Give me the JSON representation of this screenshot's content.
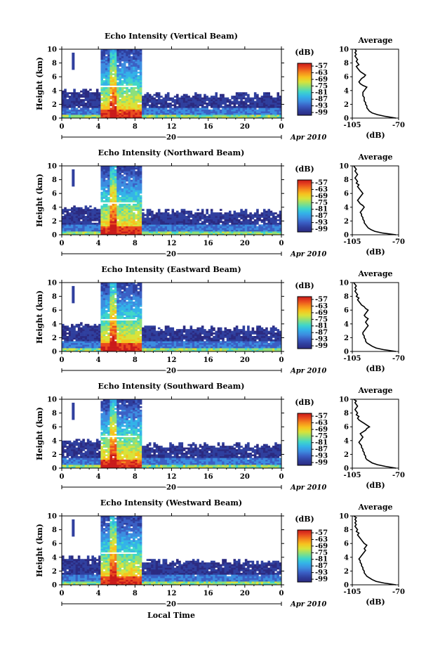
{
  "chart_data": [
    {
      "type": "heatmap",
      "title": "Echo Intensity (Vertical Beam)",
      "ylabel": "Height (km)",
      "xticks": [
        "0",
        "4",
        "8",
        "12",
        "16",
        "20",
        "0"
      ],
      "date_label": "20",
      "month_label": "Apr 2010",
      "yticks": [
        "0",
        "2",
        "4",
        "6",
        "8",
        "10"
      ],
      "ylim": [
        0,
        10
      ],
      "colorbar": {
        "label": "(dB)",
        "ticks": [
          "-57",
          "-63",
          "-69",
          "-75",
          "-81",
          "-87",
          "-93",
          "-99"
        ]
      },
      "average": {
        "title": "Average",
        "xlabel": "(dB)",
        "xticks": [
          "-105",
          "-70"
        ],
        "yticks": [
          "0",
          "2",
          "4",
          "6",
          "8",
          "10"
        ],
        "x": [
          -72,
          -80,
          -86,
          -90,
          -92,
          -93,
          -94,
          -94,
          -95,
          -95,
          -96,
          -96,
          -96,
          -97,
          -97,
          -97,
          -96,
          -95,
          -94,
          -97,
          -99,
          -100,
          -99,
          -98,
          -96,
          -95,
          -97,
          -99,
          -100,
          -101,
          -102,
          -100,
          -101,
          -102,
          -101,
          -102,
          -103,
          -102,
          -103,
          -102,
          -103
        ],
        "y": [
          0,
          0.25,
          0.5,
          0.75,
          1,
          1.25,
          1.5,
          1.75,
          2,
          2.25,
          2.5,
          2.75,
          3,
          3.25,
          3.5,
          3.75,
          4,
          4.25,
          4.5,
          4.75,
          5,
          5.25,
          5.5,
          5.75,
          6,
          6.25,
          6.5,
          6.75,
          7,
          7.25,
          7.5,
          7.75,
          8,
          8.25,
          8.5,
          8.75,
          9,
          9.25,
          9.5,
          9.75,
          10
        ]
      }
    },
    {
      "type": "heatmap",
      "title": "Echo Intensity (Northward Beam)",
      "ylabel": "Height (km)",
      "xticks": [
        "0",
        "4",
        "8",
        "12",
        "16",
        "20",
        "0"
      ],
      "date_label": "20",
      "month_label": "Apr 2010",
      "yticks": [
        "0",
        "2",
        "4",
        "6",
        "8",
        "10"
      ],
      "ylim": [
        0,
        10
      ],
      "colorbar": {
        "label": "(dB)",
        "ticks": [
          "-57",
          "-63",
          "-69",
          "-75",
          "-81",
          "-87",
          "-93",
          "-99"
        ]
      },
      "average": {
        "title": "Average",
        "xlabel": "(dB)",
        "xticks": [
          "-105",
          "-70"
        ],
        "yticks": [
          "0",
          "2",
          "4",
          "6",
          "8",
          "10"
        ],
        "x": [
          -72,
          -82,
          -88,
          -91,
          -93,
          -94,
          -95,
          -96,
          -96,
          -97,
          -97,
          -98,
          -98,
          -99,
          -98,
          -97,
          -96,
          -97,
          -99,
          -100,
          -101,
          -100,
          -99,
          -98,
          -97,
          -98,
          -99,
          -100,
          -101,
          -100,
          -102,
          -101,
          -102,
          -103,
          -102,
          -101,
          -102,
          -103,
          -102,
          -103,
          -104
        ],
        "y": [
          0,
          0.25,
          0.5,
          0.75,
          1,
          1.25,
          1.5,
          1.75,
          2,
          2.25,
          2.5,
          2.75,
          3,
          3.25,
          3.5,
          3.75,
          4,
          4.25,
          4.5,
          4.75,
          5,
          5.25,
          5.5,
          5.75,
          6,
          6.25,
          6.5,
          6.75,
          7,
          7.25,
          7.5,
          7.75,
          8,
          8.25,
          8.5,
          8.75,
          9,
          9.25,
          9.5,
          9.75,
          10
        ]
      }
    },
    {
      "type": "heatmap",
      "title": "Echo Intensity (Eastward Beam)",
      "ylabel": "Height (km)",
      "xticks": [
        "0",
        "4",
        "8",
        "12",
        "16",
        "20",
        "0"
      ],
      "date_label": "20",
      "month_label": "Apr 2010",
      "yticks": [
        "0",
        "2",
        "4",
        "6",
        "8",
        "10"
      ],
      "ylim": [
        0,
        10
      ],
      "colorbar": {
        "label": "(dB)",
        "ticks": [
          "-57",
          "-63",
          "-69",
          "-75",
          "-81",
          "-87",
          "-93",
          "-99"
        ]
      },
      "average": {
        "title": "Average",
        "xlabel": "(dB)",
        "xticks": [
          "-105",
          "-70"
        ],
        "yticks": [
          "0",
          "2",
          "4",
          "6",
          "8",
          "10"
        ],
        "x": [
          -72,
          -81,
          -87,
          -90,
          -92,
          -94,
          -95,
          -95,
          -96,
          -96,
          -97,
          -97,
          -96,
          -95,
          -94,
          -93,
          -94,
          -95,
          -94,
          -93,
          -95,
          -96,
          -95,
          -94,
          -93,
          -95,
          -96,
          -98,
          -99,
          -100,
          -101,
          -100,
          -102,
          -101,
          -102,
          -103,
          -102,
          -103,
          -102,
          -103,
          -104
        ],
        "y": [
          0,
          0.25,
          0.5,
          0.75,
          1,
          1.25,
          1.5,
          1.75,
          2,
          2.25,
          2.5,
          2.75,
          3,
          3.25,
          3.5,
          3.75,
          4,
          4.25,
          4.5,
          4.75,
          5,
          5.25,
          5.5,
          5.75,
          6,
          6.25,
          6.5,
          6.75,
          7,
          7.25,
          7.5,
          7.75,
          8,
          8.25,
          8.5,
          8.75,
          9,
          9.25,
          9.5,
          9.75,
          10
        ]
      }
    },
    {
      "type": "heatmap",
      "title": "Echo Intensity (Southward Beam)",
      "ylabel": "Height (km)",
      "xticks": [
        "0",
        "4",
        "8",
        "12",
        "16",
        "20",
        "0"
      ],
      "date_label": "20",
      "month_label": "Apr 2010",
      "yticks": [
        "0",
        "2",
        "4",
        "6",
        "8",
        "10"
      ],
      "ylim": [
        0,
        10
      ],
      "colorbar": {
        "label": "(dB)",
        "ticks": [
          "-57",
          "-63",
          "-69",
          "-75",
          "-81",
          "-87",
          "-93",
          "-99"
        ]
      },
      "average": {
        "title": "Average",
        "xlabel": "(dB)",
        "xticks": [
          "-105",
          "-70"
        ],
        "yticks": [
          "0",
          "2",
          "4",
          "6",
          "8",
          "10"
        ],
        "x": [
          -72,
          -80,
          -86,
          -90,
          -92,
          -94,
          -95,
          -95,
          -96,
          -96,
          -97,
          -97,
          -98,
          -98,
          -99,
          -100,
          -99,
          -98,
          -97,
          -98,
          -99,
          -97,
          -95,
          -94,
          -92,
          -94,
          -96,
          -98,
          -100,
          -101,
          -100,
          -102,
          -101,
          -102,
          -103,
          -102,
          -101,
          -102,
          -103,
          -102,
          -104
        ],
        "y": [
          0,
          0.25,
          0.5,
          0.75,
          1,
          1.25,
          1.5,
          1.75,
          2,
          2.25,
          2.5,
          2.75,
          3,
          3.25,
          3.5,
          3.75,
          4,
          4.25,
          4.5,
          4.75,
          5,
          5.25,
          5.5,
          5.75,
          6,
          6.25,
          6.5,
          6.75,
          7,
          7.25,
          7.5,
          7.75,
          8,
          8.25,
          8.5,
          8.75,
          9,
          9.25,
          9.5,
          9.75,
          10
        ]
      }
    },
    {
      "type": "heatmap",
      "title": "Echo Intensity (Westward Beam)",
      "ylabel": "Height (km)",
      "xticks": [
        "0",
        "4",
        "8",
        "12",
        "16",
        "20",
        "0"
      ],
      "date_label": "20",
      "month_label": "Apr 2010",
      "yticks": [
        "0",
        "2",
        "4",
        "6",
        "8",
        "10"
      ],
      "ylim": [
        0,
        10
      ],
      "colorbar": {
        "label": "(dB)",
        "ticks": [
          "-57",
          "-63",
          "-69",
          "-75",
          "-81",
          "-87",
          "-93",
          "-99"
        ]
      },
      "average": {
        "title": "Average",
        "xlabel": "(dB)",
        "xticks": [
          "-105",
          "-70"
        ],
        "yticks": [
          "0",
          "2",
          "4",
          "6",
          "8",
          "10"
        ],
        "x": [
          -72,
          -81,
          -87,
          -90,
          -92,
          -94,
          -95,
          -96,
          -96,
          -97,
          -97,
          -98,
          -98,
          -99,
          -99,
          -100,
          -99,
          -98,
          -97,
          -96,
          -95,
          -96,
          -95,
          -94,
          -96,
          -97,
          -98,
          -99,
          -100,
          -101,
          -100,
          -102,
          -101,
          -102,
          -103,
          -102,
          -103,
          -102,
          -103,
          -102,
          -104
        ],
        "y": [
          0,
          0.25,
          0.5,
          0.75,
          1,
          1.25,
          1.5,
          1.75,
          2,
          2.25,
          2.5,
          2.75,
          3,
          3.25,
          3.5,
          3.75,
          4,
          4.25,
          4.5,
          4.75,
          5,
          5.25,
          5.5,
          5.75,
          6,
          6.25,
          6.5,
          6.75,
          7,
          7.25,
          7.5,
          7.75,
          8,
          8.25,
          8.5,
          8.75,
          9,
          9.25,
          9.5,
          9.75,
          10
        ]
      }
    }
  ],
  "shared": {
    "xlabel": "Local Time",
    "xlim_hours": [
      0,
      24
    ],
    "colormap": [
      "#2b2a80",
      "#2f3f9e",
      "#3a5fc4",
      "#3c8de0",
      "#33b3e8",
      "#3fd6c9",
      "#8de07a",
      "#d8e33a",
      "#f7c21e",
      "#f58a1d",
      "#e94a1e",
      "#c91a1a"
    ]
  }
}
